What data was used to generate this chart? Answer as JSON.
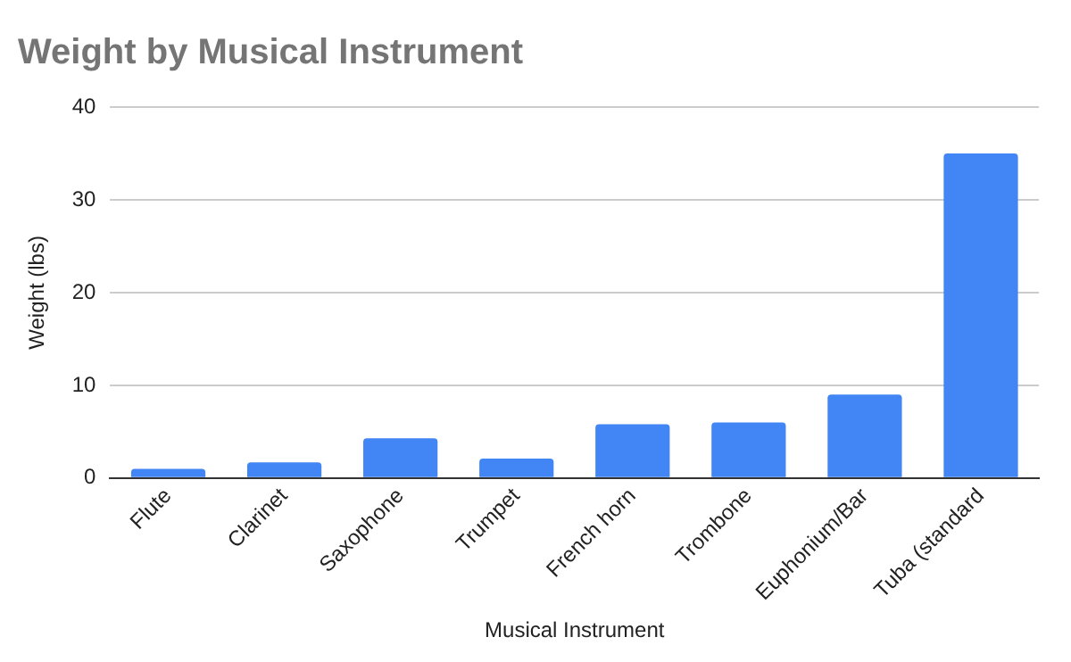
{
  "chart_data": {
    "type": "bar",
    "title": "Weight by Musical Instrument",
    "xlabel": "Musical Instrument",
    "ylabel": "Weight (lbs)",
    "categories": [
      "Flute",
      "Clarinet",
      "Saxophone",
      "Trumpet",
      "French horn",
      "Trombone",
      "Euphonium/Bar",
      "Tuba (standard"
    ],
    "values": [
      1.0,
      1.7,
      4.3,
      2.1,
      5.8,
      6.0,
      9.0,
      35
    ],
    "color": "#4285f4",
    "ylim": [
      0,
      40
    ],
    "yticks": [
      0,
      10,
      20,
      30,
      40
    ],
    "grid": "y"
  }
}
